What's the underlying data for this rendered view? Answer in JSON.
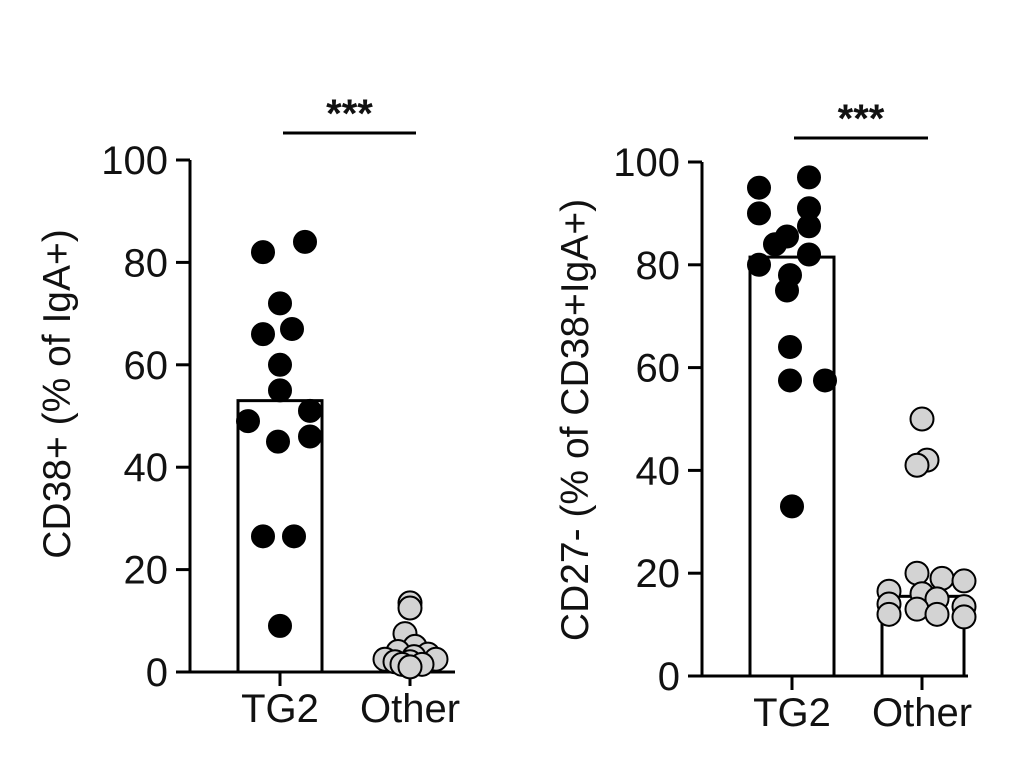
{
  "chart_data": [
    {
      "type": "bar",
      "panel": "left",
      "ylabel": "CD38+ (% of IgA+)",
      "ylim": [
        0,
        100
      ],
      "yticks": [
        0,
        20,
        40,
        60,
        80,
        100
      ],
      "categories": [
        "TG2",
        "Other"
      ],
      "bars": [
        {
          "category": "TG2",
          "value": 53,
          "fill": "#ffffff"
        },
        {
          "category": "Other",
          "value": 0,
          "fill": "#ffffff"
        }
      ],
      "points": [
        {
          "category": "TG2",
          "color": "#000000",
          "values": [
            84,
            82,
            72,
            67,
            66,
            60,
            55,
            51,
            49,
            46,
            45,
            26.5,
            26.5,
            9
          ]
        },
        {
          "category": "Other",
          "color": "#d3d3d3",
          "values": [
            13.5,
            12.5,
            7.5,
            5,
            4,
            3.5,
            3,
            2.5,
            2.5,
            2,
            2,
            1.5,
            1.5,
            1
          ]
        }
      ],
      "significance": {
        "label": "***",
        "between": [
          "TG2",
          "Other"
        ]
      }
    },
    {
      "type": "bar",
      "panel": "right",
      "ylabel": "CD27- (% of CD38+IgA+)",
      "ylim": [
        0,
        100
      ],
      "yticks": [
        0,
        20,
        40,
        60,
        80,
        100
      ],
      "categories": [
        "TG2",
        "Other"
      ],
      "bars": [
        {
          "category": "TG2",
          "value": 81.5,
          "fill": "#ffffff"
        },
        {
          "category": "Other",
          "value": 15.5,
          "fill": "#ffffff"
        }
      ],
      "points": [
        {
          "category": "TG2",
          "color": "#000000",
          "values": [
            97,
            95,
            91,
            90,
            87.5,
            85.5,
            84,
            82,
            80,
            78,
            75,
            64,
            57.5,
            57.5,
            33
          ]
        },
        {
          "category": "Other",
          "color": "#d3d3d3",
          "values": [
            50,
            42,
            41,
            20,
            19,
            18.5,
            16.5,
            16,
            15,
            14,
            13.5,
            13,
            12,
            12,
            11.5
          ]
        }
      ],
      "significance": {
        "label": "***",
        "between": [
          "TG2",
          "Other"
        ]
      }
    }
  ]
}
